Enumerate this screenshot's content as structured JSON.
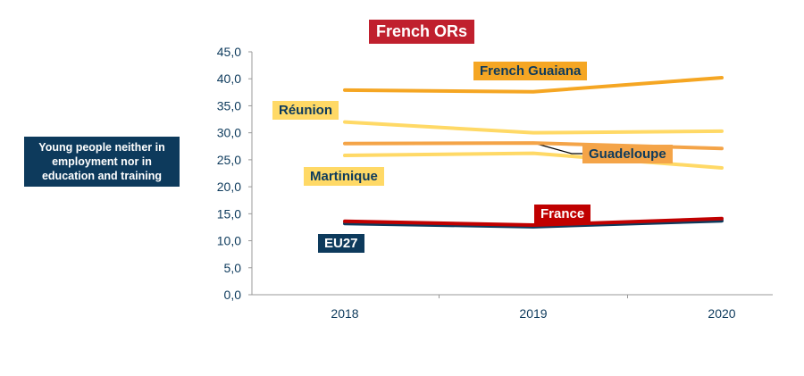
{
  "chart_data": {
    "type": "line",
    "title": "French ORs",
    "ylabel": "Young people neither in employment nor in education and training",
    "xlabel": "",
    "categories": [
      "2018",
      "2019",
      "2020"
    ],
    "ylim": [
      0,
      45
    ],
    "yticks": [
      "0,0",
      "5,0",
      "10,0",
      "15,0",
      "20,0",
      "25,0",
      "30,0",
      "35,0",
      "40,0",
      "45,0"
    ],
    "grid": false,
    "series": [
      {
        "name": "French Guaiana",
        "values": [
          37.9,
          37.6,
          40.2
        ],
        "color": "#f5a623"
      },
      {
        "name": "Réunion",
        "values": [
          32.0,
          30.0,
          30.3
        ],
        "color": "#ffd966"
      },
      {
        "name": "Guadeloupe",
        "values": [
          28.0,
          28.1,
          27.1
        ],
        "color": "#f4a448"
      },
      {
        "name": "Martinique",
        "values": [
          25.8,
          26.2,
          23.5
        ],
        "color": "#ffd966"
      },
      {
        "name": "EU27",
        "values": [
          13.2,
          12.6,
          13.7
        ],
        "color": "#0d3a5c"
      },
      {
        "name": "France",
        "values": [
          13.6,
          12.9,
          14.1
        ],
        "color": "#c00000"
      }
    ]
  }
}
